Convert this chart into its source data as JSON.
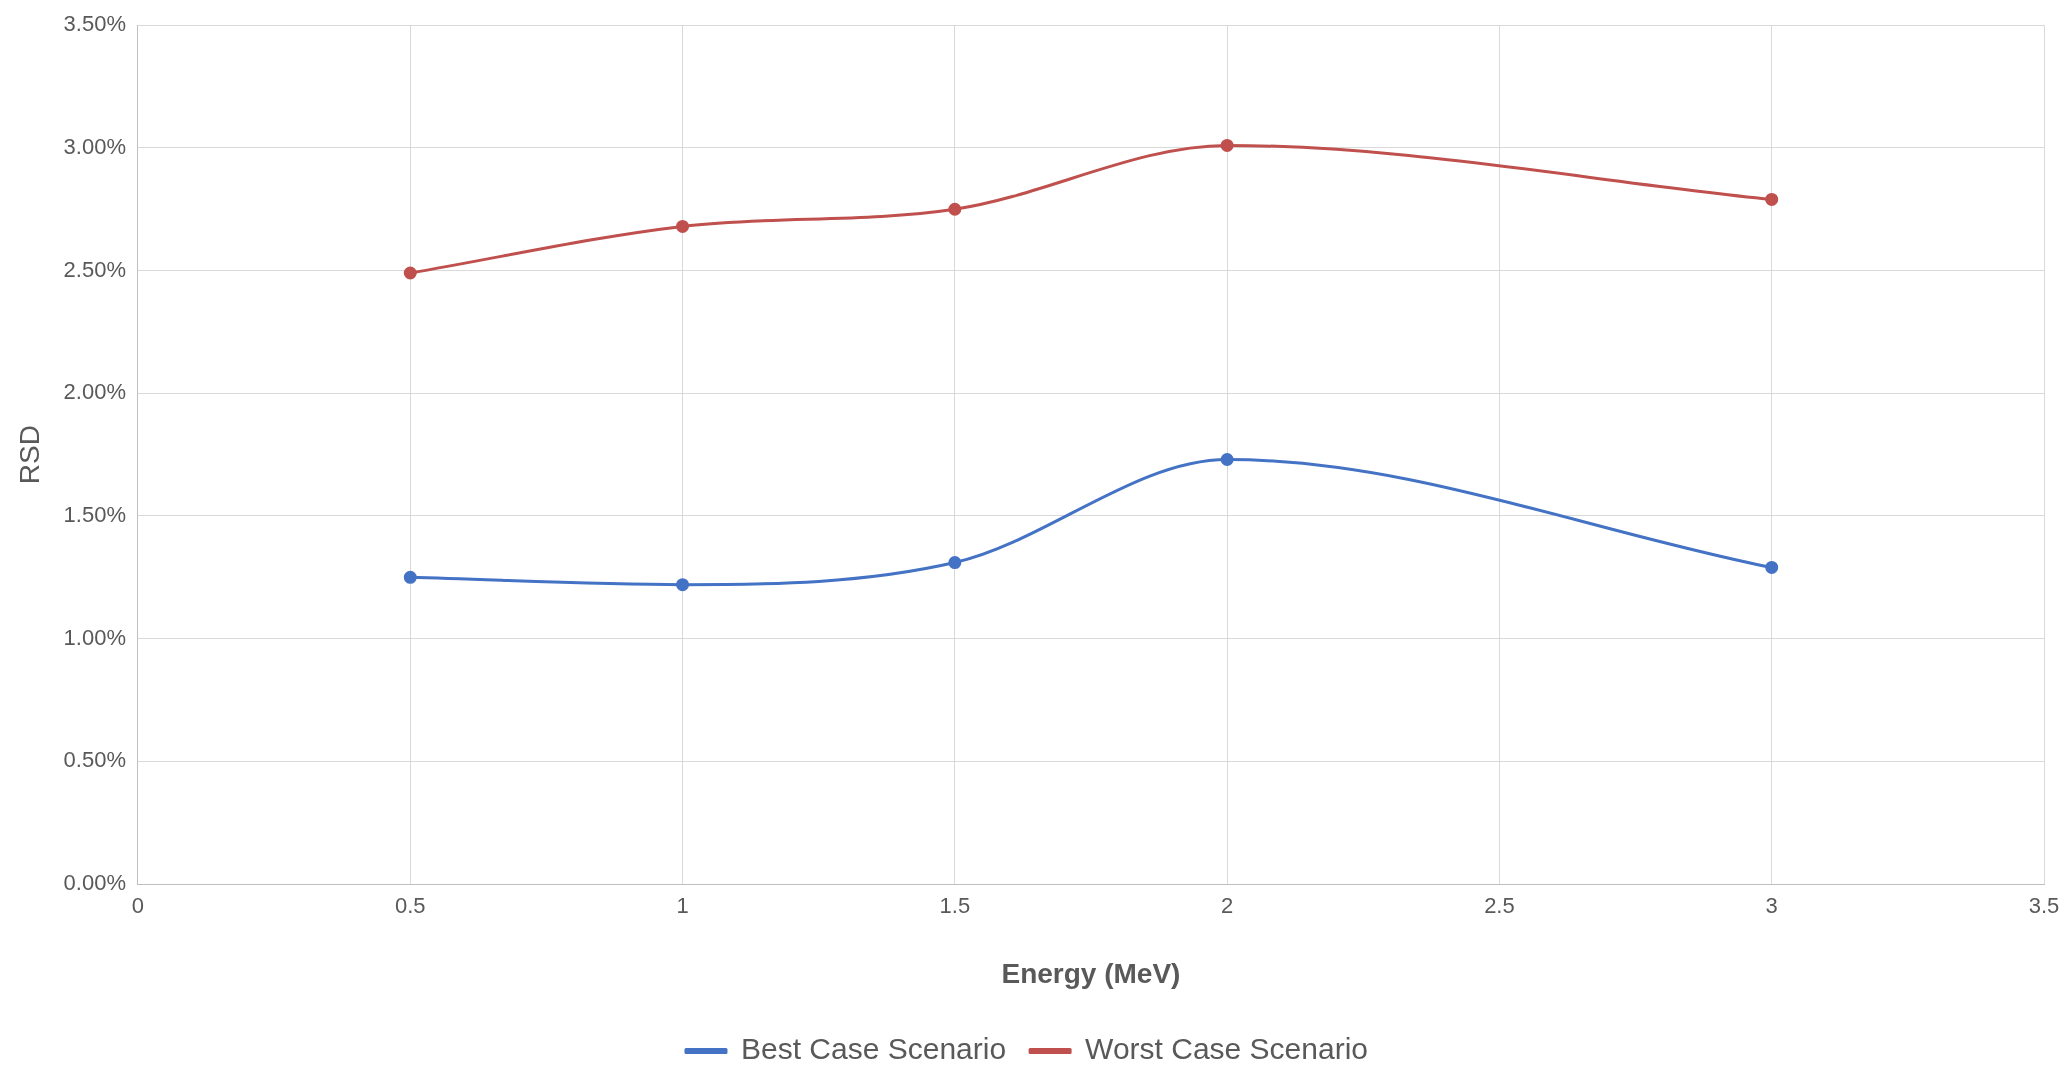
{
  "chart_data": {
    "type": "line",
    "xlabel": "Energy (MeV)",
    "ylabel": "RSD",
    "x": [
      0.5,
      1,
      1.5,
      2,
      3
    ],
    "series": [
      {
        "name": "Best Case Scenario",
        "color": "#4472c4",
        "values": [
          1.25,
          1.22,
          1.31,
          1.73,
          1.29
        ]
      },
      {
        "name": "Worst Case Scenario",
        "color": "#c0504d",
        "values": [
          2.49,
          2.68,
          2.75,
          3.01,
          2.79
        ]
      }
    ],
    "xlim": [
      0,
      3.5
    ],
    "xticks": [
      0,
      0.5,
      1,
      1.5,
      2,
      2.5,
      3,
      3.5
    ],
    "ylim": [
      0,
      3.5
    ],
    "yticks": [
      {
        "value": 0,
        "label": "0.00%"
      },
      {
        "value": 0.5,
        "label": "0.50%"
      },
      {
        "value": 1,
        "label": "1.00%"
      },
      {
        "value": 1.5,
        "label": "1.50%"
      },
      {
        "value": 2,
        "label": "2.00%"
      },
      {
        "value": 2.5,
        "label": "2.50%"
      },
      {
        "value": 3,
        "label": "3.00%"
      },
      {
        "value": 3.5,
        "label": "3.50%"
      }
    ],
    "grid": true,
    "legend": "bottom",
    "marker": "circle",
    "line_style": "solid"
  }
}
